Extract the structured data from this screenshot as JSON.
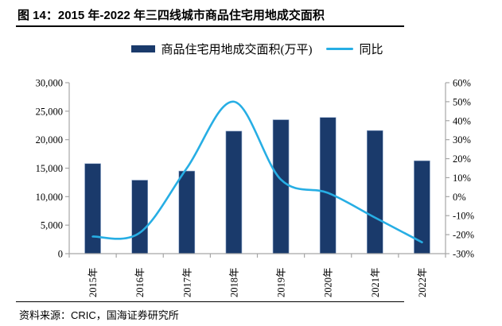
{
  "figure": {
    "title": "图 14：2015 年-2022 年三四线城市商品住宅用地成交面积",
    "source": "资料来源：CRIC，国海证券研究所"
  },
  "legend": {
    "items": [
      {
        "label": "商品住宅用地成交面积(万平)",
        "swatch": "bar"
      },
      {
        "label": "同比",
        "swatch": "line"
      }
    ]
  },
  "colors": {
    "bar": "#1a3a6b",
    "bar_edge": "#8fa8cc",
    "line": "#27aee4",
    "axis": "#a6a6a6",
    "text": "#000000"
  },
  "chart_data": {
    "type": "bar",
    "subtype": "bar+line dual-axis combo",
    "title": "图 14：2015 年-2022 年三四线城市商品住宅用地成交面积",
    "categories": [
      "2015年",
      "2016年",
      "2017年",
      "2018年",
      "2019年",
      "2020年",
      "2021年",
      "2022年"
    ],
    "series": [
      {
        "name": "商品住宅用地成交面积(万平)",
        "type": "bar",
        "axis": "left",
        "values": [
          15800,
          12900,
          14500,
          21500,
          23500,
          23900,
          21600,
          16300
        ]
      },
      {
        "name": "同比",
        "type": "line",
        "axis": "right",
        "unit": "percent",
        "smooth": true,
        "values": [
          -21,
          -19,
          15,
          50,
          9,
          2,
          -11,
          -24
        ]
      }
    ],
    "left_axis": {
      "min": 0,
      "max": 30000,
      "step": 5000,
      "tick_labels": [
        "30,000",
        "25,000",
        "20,000",
        "15,000",
        "10,000",
        "5,000",
        "0"
      ]
    },
    "right_axis": {
      "min": -30,
      "max": 60,
      "step": 10,
      "tick_labels": [
        "60%",
        "50%",
        "40%",
        "30%",
        "20%",
        "10%",
        "0%",
        "-10%",
        "-20%",
        "-30%"
      ]
    },
    "grid": false,
    "legend_position": "top-center",
    "xlabel": "",
    "ylabel": ""
  }
}
